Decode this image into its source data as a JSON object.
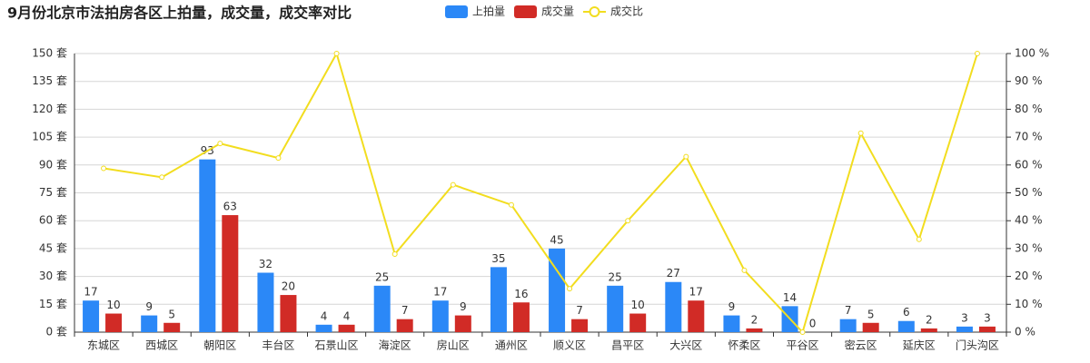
{
  "chart_data": {
    "type": "bar-line",
    "title": "9月份北京市法拍房各区上拍量，成交量，成交率对比",
    "categories": [
      "东城区",
      "西城区",
      "朝阳区",
      "丰台区",
      "石景山区",
      "海淀区",
      "房山区",
      "通州区",
      "顺义区",
      "昌平区",
      "大兴区",
      "怀柔区",
      "平谷区",
      "密云区",
      "延庆区",
      "门头沟区"
    ],
    "series": [
      {
        "name": "上拍量",
        "type": "bar",
        "color": "#2b88f7",
        "values": [
          17,
          9,
          93,
          32,
          4,
          25,
          17,
          35,
          45,
          25,
          27,
          9,
          14,
          7,
          6,
          3
        ]
      },
      {
        "name": "成交量",
        "type": "bar",
        "color": "#d12b26",
        "values": [
          10,
          5,
          63,
          20,
          4,
          7,
          9,
          16,
          7,
          10,
          17,
          2,
          0,
          5,
          2,
          3
        ]
      },
      {
        "name": "成交比",
        "type": "line",
        "axis": "y2",
        "color": "#f2dd1f",
        "values": [
          58.8,
          55.6,
          67.7,
          62.5,
          100,
          28,
          52.9,
          45.7,
          15.6,
          40,
          63,
          22.2,
          0,
          71.4,
          33.3,
          100
        ]
      }
    ],
    "ylim": [
      0,
      150
    ],
    "yticks": [
      {
        "value": 0,
        "label": "0 套"
      },
      {
        "value": 15,
        "label": "15 套"
      },
      {
        "value": 30,
        "label": "30 套"
      },
      {
        "value": 45,
        "label": "45 套"
      },
      {
        "value": 60,
        "label": "60 套"
      },
      {
        "value": 75,
        "label": "75 套"
      },
      {
        "value": 90,
        "label": "90 套"
      },
      {
        "value": 105,
        "label": "105 套"
      },
      {
        "value": 120,
        "label": "120 套"
      },
      {
        "value": 135,
        "label": "135 套"
      },
      {
        "value": 150,
        "label": "150 套"
      }
    ],
    "y2lim": [
      0,
      100
    ],
    "y2ticks": [
      {
        "value": 0,
        "label": "0 %"
      },
      {
        "value": 10,
        "label": "10 %"
      },
      {
        "value": 20,
        "label": "20 %"
      },
      {
        "value": 30,
        "label": "30 %"
      },
      {
        "value": 40,
        "label": "40 %"
      },
      {
        "value": 50,
        "label": "50 %"
      },
      {
        "value": 60,
        "label": "60 %"
      },
      {
        "value": 70,
        "label": "70 %"
      },
      {
        "value": 80,
        "label": "80 %"
      },
      {
        "value": 90,
        "label": "90 %"
      },
      {
        "value": 100,
        "label": "100 %"
      }
    ],
    "grid": true
  }
}
